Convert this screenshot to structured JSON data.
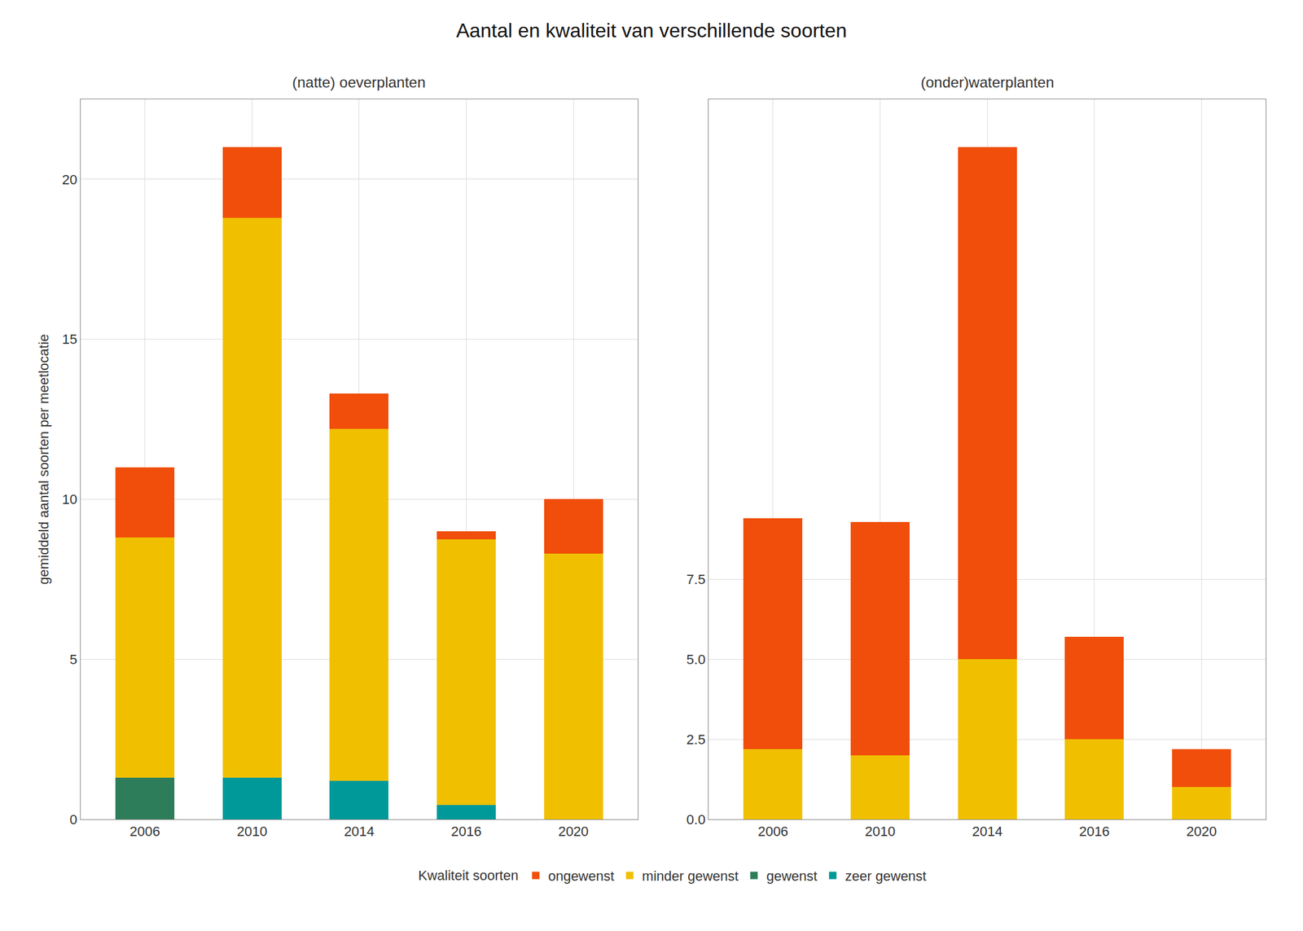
{
  "title": "Aantal en kwaliteit van verschillende soorten",
  "legend_title": "Kwaliteit soorten",
  "legend": "bottom",
  "chart_data": [
    {
      "type": "bar",
      "stacked": true,
      "grid": true,
      "title": "(natte) oeverplanten",
      "ylabel": "gemiddeld aantal soorten per meetlocatie",
      "categories": [
        "2006",
        "2010",
        "2014",
        "2016",
        "2020"
      ],
      "series": [
        {
          "name": "gewenst",
          "color": "#2E7D5A",
          "values": [
            1.3,
            0.0,
            0.0,
            0.0,
            0.0
          ]
        },
        {
          "name": "zeer gewenst",
          "color": "#009999",
          "values": [
            0.0,
            1.3,
            1.2,
            0.45,
            0.0
          ]
        },
        {
          "name": "minder gewenst",
          "color": "#F0C000",
          "values": [
            7.5,
            17.5,
            11.0,
            8.3,
            8.3
          ]
        },
        {
          "name": "ongewenst",
          "color": "#F04E0A",
          "values": [
            2.2,
            2.2,
            1.1,
            0.25,
            1.7
          ]
        }
      ],
      "ylim": [
        0,
        22.5
      ],
      "yticks": [
        0,
        5,
        10,
        15,
        20
      ]
    },
    {
      "type": "bar",
      "stacked": true,
      "grid": true,
      "title": "(onder)waterplanten",
      "categories": [
        "2006",
        "2010",
        "2014",
        "2016",
        "2020"
      ],
      "series": [
        {
          "name": "gewenst",
          "color": "#2E7D5A",
          "values": [
            0.0,
            0.0,
            0.0,
            0.0,
            0.0
          ]
        },
        {
          "name": "zeer gewenst",
          "color": "#009999",
          "values": [
            0.0,
            0.0,
            0.0,
            0.0,
            0.0
          ]
        },
        {
          "name": "minder gewenst",
          "color": "#F0C000",
          "values": [
            2.2,
            2.0,
            5.0,
            2.5,
            1.0
          ]
        },
        {
          "name": "ongewenst",
          "color": "#F04E0A",
          "values": [
            7.2,
            7.3,
            16.0,
            3.2,
            1.2
          ]
        }
      ],
      "ylim": [
        0,
        22.5
      ],
      "yticks": [
        {
          "value": 0.0,
          "label": "0.0"
        },
        2.5,
        {
          "value": 5.0,
          "label": "5.0"
        },
        7.5
      ]
    }
  ]
}
